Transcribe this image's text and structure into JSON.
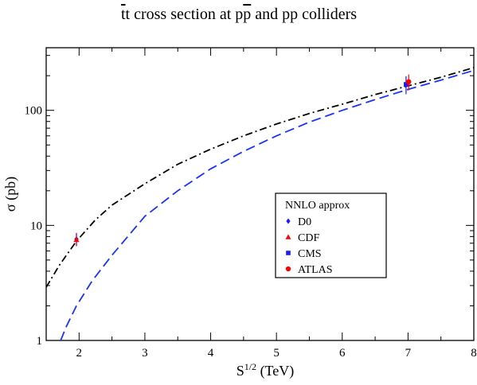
{
  "chart_data": {
    "type": "line",
    "title": "t̅t cross section at p̅p̅ and pp colliders",
    "xlabel": "S^{1/2} (TeV)",
    "ylabel": "σ (pb)",
    "xlim": [
      1.5,
      8
    ],
    "ylim": [
      1,
      350
    ],
    "yscale": "log",
    "xticks": [
      "2",
      "3",
      "4",
      "5",
      "6",
      "7",
      "8"
    ],
    "yticks": [
      "1",
      "10",
      "100"
    ],
    "legend": {
      "title": "NNLO approx",
      "placement": "center-right",
      "entries": [
        {
          "label": "D0",
          "marker": "diamond",
          "color": "#1a1aff"
        },
        {
          "label": "CDF",
          "marker": "triangle",
          "color": "#ff0000"
        },
        {
          "label": "CMS",
          "marker": "square",
          "color": "#1a1aff"
        },
        {
          "label": "ATLAS",
          "marker": "circle",
          "color": "#ff0000"
        }
      ]
    },
    "series": [
      {
        "style": "dash-dot",
        "color": "#000000",
        "x": [
          1.5,
          1.7,
          1.96,
          2.25,
          2.5,
          3.0,
          3.5,
          4.0,
          4.5,
          5.0,
          5.5,
          6.0,
          6.5,
          7.0,
          7.5,
          8.0
        ],
        "y": [
          2.9,
          4.5,
          7.3,
          11.2,
          15.0,
          23.0,
          34.0,
          46.0,
          60.0,
          76.0,
          94.0,
          113.0,
          137.0,
          163.0,
          194.0,
          235.0
        ]
      },
      {
        "style": "dashed",
        "color": "#1a33ff",
        "x": [
          1.72,
          1.8,
          1.96,
          2.2,
          2.5,
          3.0,
          3.5,
          4.0,
          4.5,
          5.0,
          5.5,
          6.0,
          6.5,
          7.0,
          7.5,
          8.0
        ],
        "y": [
          1.0,
          1.3,
          2.0,
          3.3,
          5.5,
          12.0,
          20.0,
          31.0,
          44.0,
          60.0,
          79.0,
          100.0,
          124.0,
          152.0,
          183.0,
          222.0
        ]
      }
    ],
    "points": [
      {
        "name": "D0",
        "marker": "diamond",
        "color": "#1a1aff",
        "x": 1.96,
        "y": 7.6,
        "err": [
          1.0,
          1.0
        ]
      },
      {
        "name": "CDF",
        "marker": "triangle",
        "color": "#ff0000",
        "x": 1.96,
        "y": 7.5,
        "err": [
          0.8,
          0.8
        ]
      },
      {
        "name": "CMS",
        "marker": "square",
        "color": "#1a1aff",
        "x": 6.97,
        "y": 168,
        "err": [
          30,
          30
        ]
      },
      {
        "name": "ATLAS",
        "marker": "circle",
        "color": "#ff0000",
        "x": 7.01,
        "y": 177,
        "err": [
          28,
          28
        ]
      }
    ]
  }
}
